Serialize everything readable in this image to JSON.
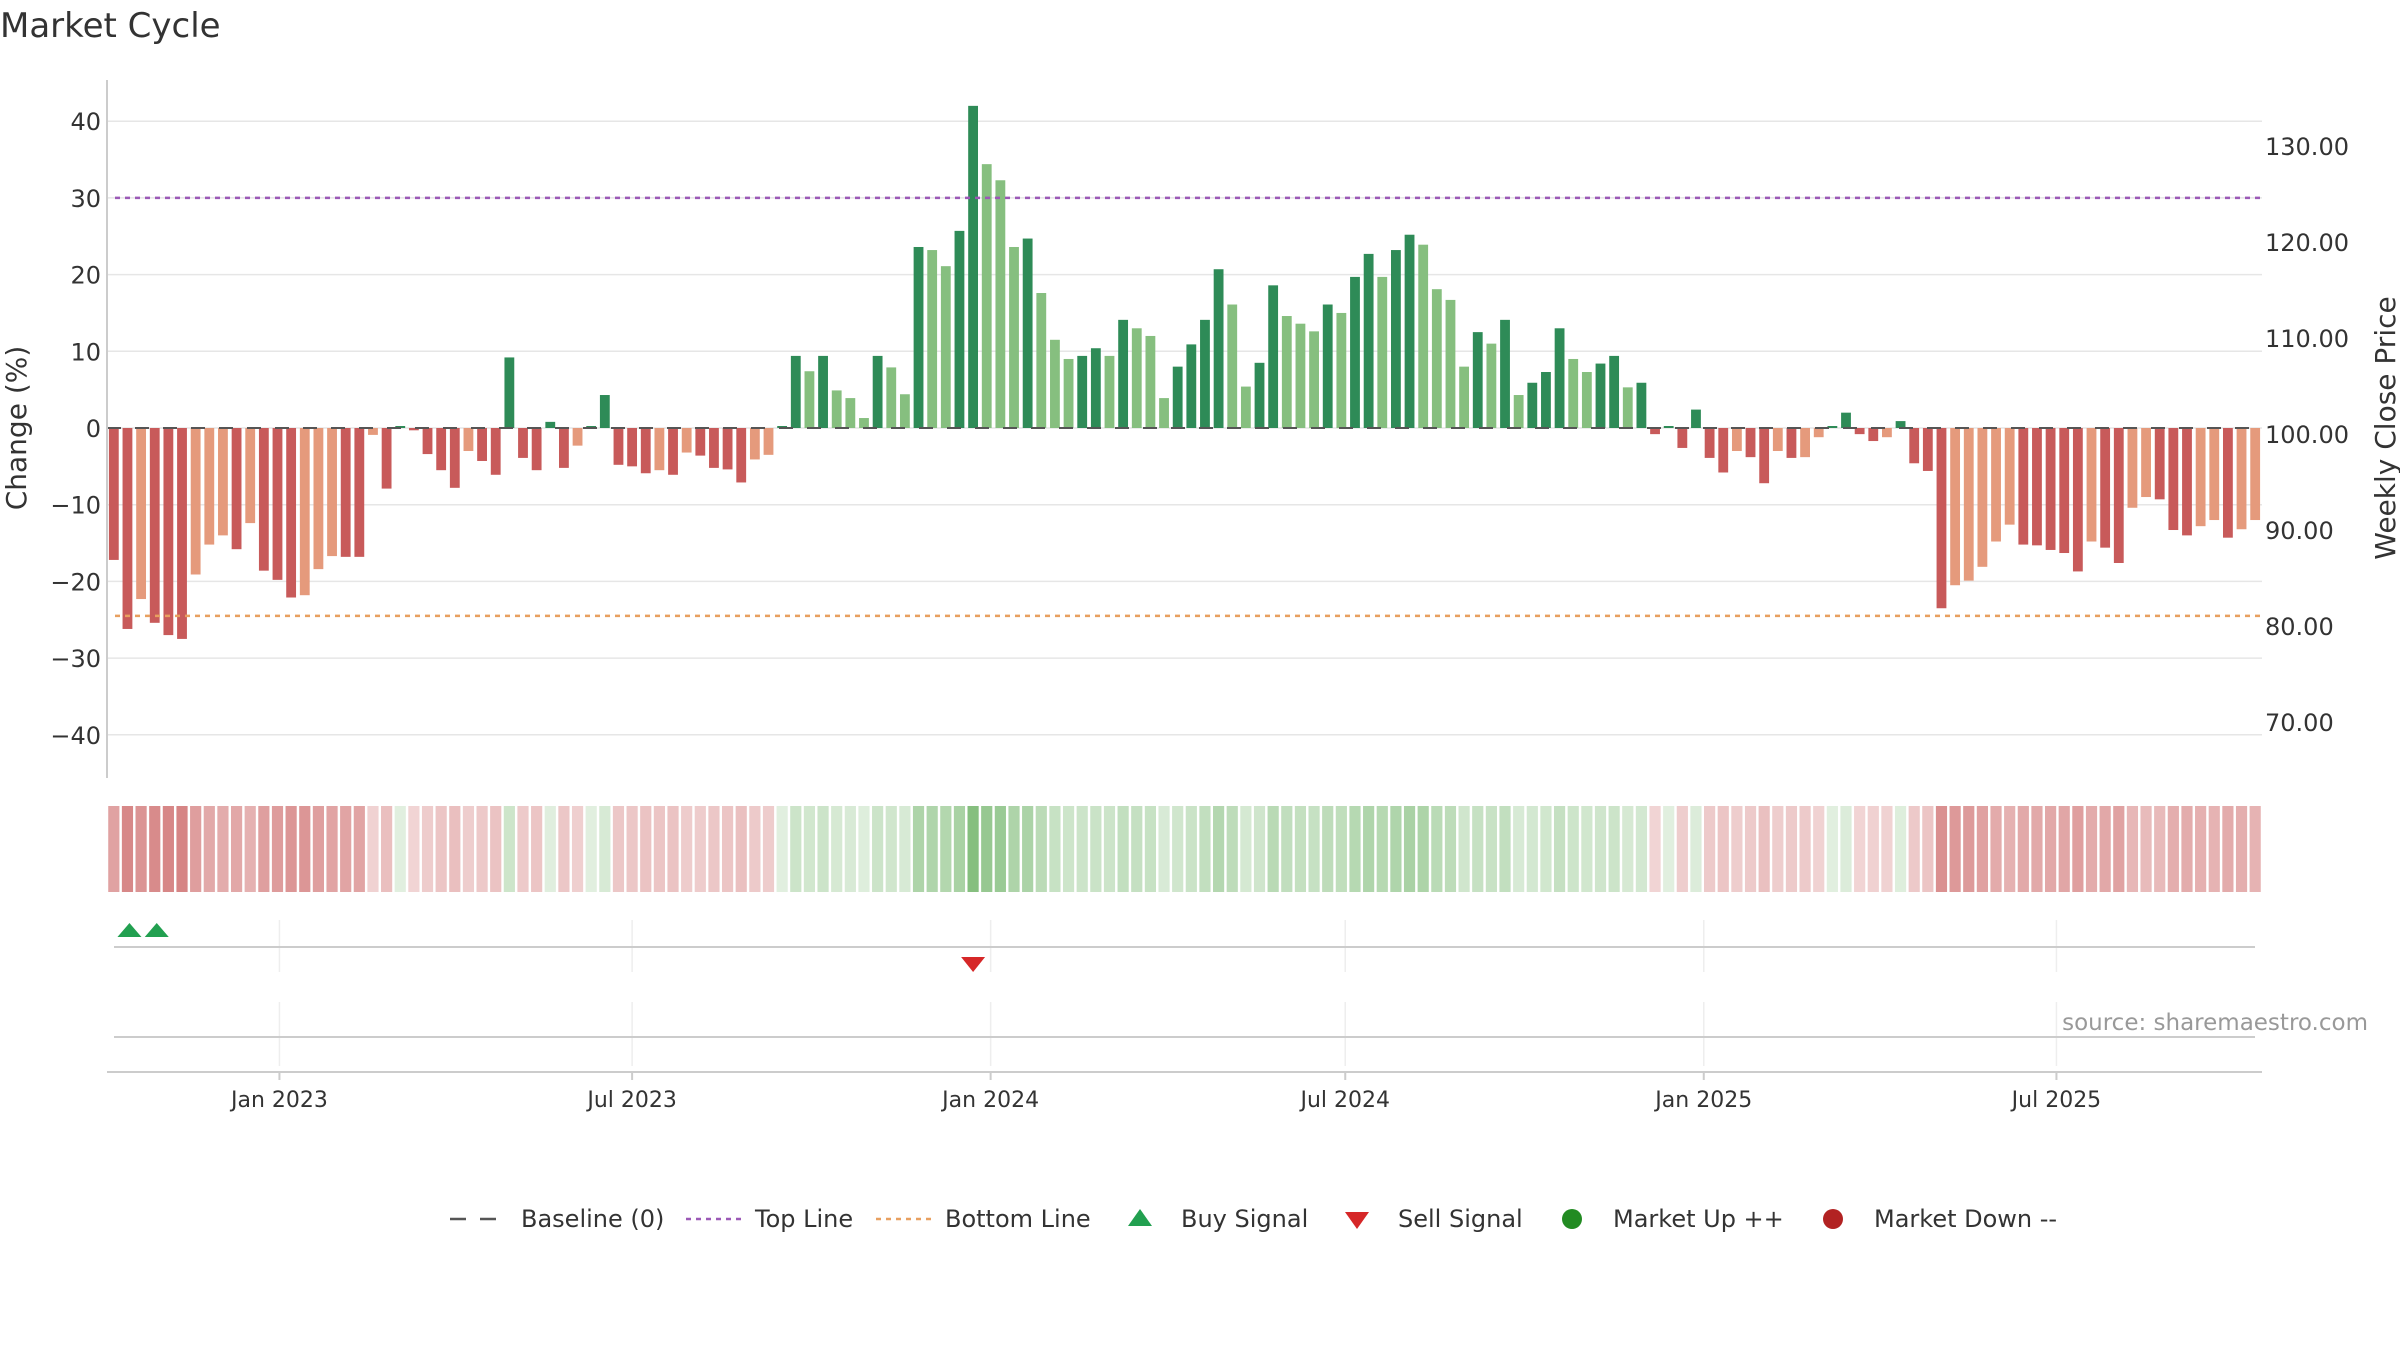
{
  "title": "Market Cycle",
  "source": "source: sharemaestro.com",
  "chart_data": {
    "type": "bar",
    "title": "Market Cycle",
    "ylabel": "Change (%)",
    "y2label": "Weekly Close Price",
    "ylim": [
      -45,
      45
    ],
    "yticks": [
      40,
      30,
      20,
      10,
      0,
      -10,
      -20,
      -30,
      -40
    ],
    "yticklabels": [
      "40",
      "30",
      "20",
      "10",
      "0",
      "−10",
      "−20",
      "−30",
      "−40"
    ],
    "y2ticks": [
      130,
      120,
      110,
      100,
      90,
      80,
      70
    ],
    "y2ticklabels": [
      "130.00",
      "120.00",
      "110.00",
      "100.00",
      "90.00",
      "80.00",
      "70.00"
    ],
    "x_start": "2022-10-08",
    "x_interval": "weekly",
    "xticks": [
      "Jan 2023",
      "Jul 2023",
      "Jan 2024",
      "Jul 2024",
      "Jan 2025",
      "Jul 2025"
    ],
    "xtick_dates": [
      "2023-01-01",
      "2023-07-01",
      "2024-01-01",
      "2024-07-01",
      "2025-01-01",
      "2025-07-01"
    ],
    "top_line": 30,
    "bottom_line": -24.5,
    "grid": true,
    "legend_position": "bottom-center",
    "values": [
      -17.2,
      -26.2,
      -22.3,
      -25.4,
      -27,
      -27.5,
      -19.1,
      -15.2,
      -14,
      -15.8,
      -12.4,
      -18.6,
      -19.8,
      -22.1,
      -21.8,
      -18.4,
      -16.7,
      -16.8,
      -16.8,
      -0.9,
      -7.9,
      0,
      -0.3,
      -3.4,
      -5.5,
      -7.8,
      -3,
      -4.3,
      -6.1,
      9.2,
      -3.9,
      -5.5,
      0.8,
      -5.2,
      -2.3,
      0.2,
      4.3,
      -4.8,
      -5,
      -5.9,
      -5.5,
      -6.1,
      -3.2,
      -3.6,
      -5.2,
      -5.4,
      -7.1,
      -4.1,
      -3.5,
      0.2,
      9.4,
      7.4,
      9.4,
      4.9,
      3.9,
      1.3,
      9.4,
      7.9,
      4.4,
      23.6,
      23.2,
      21.1,
      25.7,
      42,
      34.4,
      32.3,
      23.6,
      24.7,
      17.6,
      11.5,
      9,
      9.4,
      10.4,
      9.4,
      14.1,
      13,
      12,
      3.9,
      8,
      10.9,
      14.1,
      20.7,
      16.1,
      5.4,
      8.5,
      18.6,
      14.6,
      13.6,
      12.6,
      16.1,
      15,
      19.7,
      22.7,
      19.7,
      23.2,
      25.2,
      23.9,
      18.1,
      16.7,
      8,
      12.5,
      11,
      14.1,
      4.3,
      5.9,
      7.3,
      13,
      9,
      7.3,
      8.4,
      9.4,
      5.3,
      5.9,
      -0.8,
      0,
      -2.6,
      2.4,
      -3.9,
      -5.8,
      -3,
      -3.8,
      -7.2,
      -3,
      -3.9,
      -3.8,
      -1.2,
      0,
      2,
      -0.8,
      -1.7,
      -1.2,
      0.9,
      -4.6,
      -5.6,
      -23.5,
      -20.5,
      -19.9,
      -18.1,
      -14.8,
      -12.6,
      -15.2,
      -15.3,
      -15.9,
      -16.3,
      -18.7,
      -14.8,
      -15.6,
      -17.6,
      -10.4,
      -9,
      -9.3,
      -13.3,
      -14,
      -12.8,
      -12,
      -14.3,
      -13.2,
      -12
    ],
    "sell_signal_weeks": [
      63
    ],
    "buy_signal_weeks": [
      1,
      3
    ],
    "colors": {
      "strong_up": "#2e8b57",
      "mild_up": "#86bf7f",
      "strong_down": "#c85a5a",
      "mild_down": "#e59a7c",
      "top_line": "#9b59b6",
      "bottom_line": "#e8a060",
      "buy": "#22a050",
      "sell": "#d62728",
      "market_up": "#228b22",
      "market_down": "#b22222"
    }
  },
  "legend": [
    {
      "label": "Baseline (0)",
      "icon": "dashed-gray-line"
    },
    {
      "label": "Top Line",
      "icon": "dotted-purple-line"
    },
    {
      "label": "Bottom Line",
      "icon": "dotted-orange-line"
    },
    {
      "label": "Buy Signal",
      "icon": "green-up-triangle"
    },
    {
      "label": "Sell Signal",
      "icon": "red-down-triangle"
    },
    {
      "label": "Market Up ++",
      "icon": "green-circle"
    },
    {
      "label": "Market Down --",
      "icon": "red-circle"
    }
  ]
}
